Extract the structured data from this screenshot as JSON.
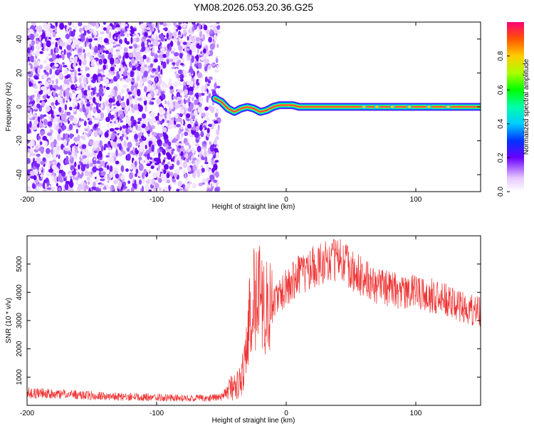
{
  "title": "YM08.2026.053.20.36.G25",
  "chart_data": [
    {
      "type": "heatmap",
      "xlabel": "Height of straight line (km)",
      "ylabel": "Frequency (Hz)",
      "xlim": [
        -200,
        150
      ],
      "ylim": [
        -50,
        50
      ],
      "xticks": [
        -200,
        -100,
        0,
        100
      ],
      "yticks": [
        -40,
        -20,
        0,
        20,
        40
      ],
      "noise_region": {
        "x_range": [
          -200,
          -52
        ],
        "y_range": [
          -50,
          50
        ],
        "typical_value": 0.2
      },
      "signal_track": {
        "x": [
          -55,
          -50,
          -45,
          -40,
          -35,
          -30,
          -25,
          -20,
          -15,
          -10,
          -5,
          0,
          5,
          10,
          20,
          40,
          60,
          80,
          100,
          120,
          150
        ],
        "y": [
          5,
          3,
          -1,
          -3,
          -1,
          0,
          -1,
          -3,
          -2,
          0,
          1,
          1,
          1,
          0,
          0,
          0,
          0,
          0,
          0,
          0,
          0
        ],
        "value": [
          0.85,
          0.7,
          0.6,
          0.75,
          0.65,
          0.7,
          0.75,
          0.8,
          0.75,
          0.8,
          0.85,
          0.9,
          0.85,
          0.95,
          0.95,
          0.95,
          0.95,
          0.95,
          0.95,
          0.95,
          0.95
        ]
      },
      "colorbar": {
        "label": "Normalized spectral amplitude",
        "range": [
          0,
          1
        ],
        "ticks": [
          0.0,
          0.2,
          0.4,
          0.6,
          0.8
        ],
        "tick_labels": [
          "0.0",
          "0.2",
          "0.4",
          "0.6",
          "0.8"
        ]
      },
      "grid": false
    },
    {
      "type": "line",
      "xlabel": "Height of straight line (km)",
      "ylabel": "SNR (10 * v/v)",
      "xlim": [
        -200,
        150
      ],
      "ylim": [
        0,
        6000
      ],
      "xticks": [
        -200,
        -100,
        0,
        100
      ],
      "yticks": [
        1000,
        2000,
        3000,
        4000,
        5000
      ],
      "color": "#ee3333",
      "series": [
        {
          "x": [
            -200,
            -180,
            -160,
            -140,
            -120,
            -100,
            -80,
            -60,
            -50,
            -45,
            -40,
            -35,
            -32,
            -30,
            -28,
            -25,
            -22,
            -20,
            -18,
            -15,
            -10,
            -5,
            0,
            10,
            20,
            30,
            40,
            50,
            60,
            70,
            80,
            90,
            100,
            110,
            120,
            130,
            140,
            150
          ],
          "y": [
            450,
            400,
            380,
            320,
            300,
            280,
            260,
            250,
            300,
            500,
            700,
            900,
            1500,
            2200,
            3200,
            3800,
            4000,
            4300,
            3200,
            3500,
            3700,
            3900,
            4200,
            4600,
            4900,
            5100,
            5200,
            4800,
            4500,
            4200,
            4100,
            4000,
            4000,
            3900,
            3800,
            3600,
            3400,
            3300
          ]
        }
      ],
      "grid": false
    }
  ]
}
